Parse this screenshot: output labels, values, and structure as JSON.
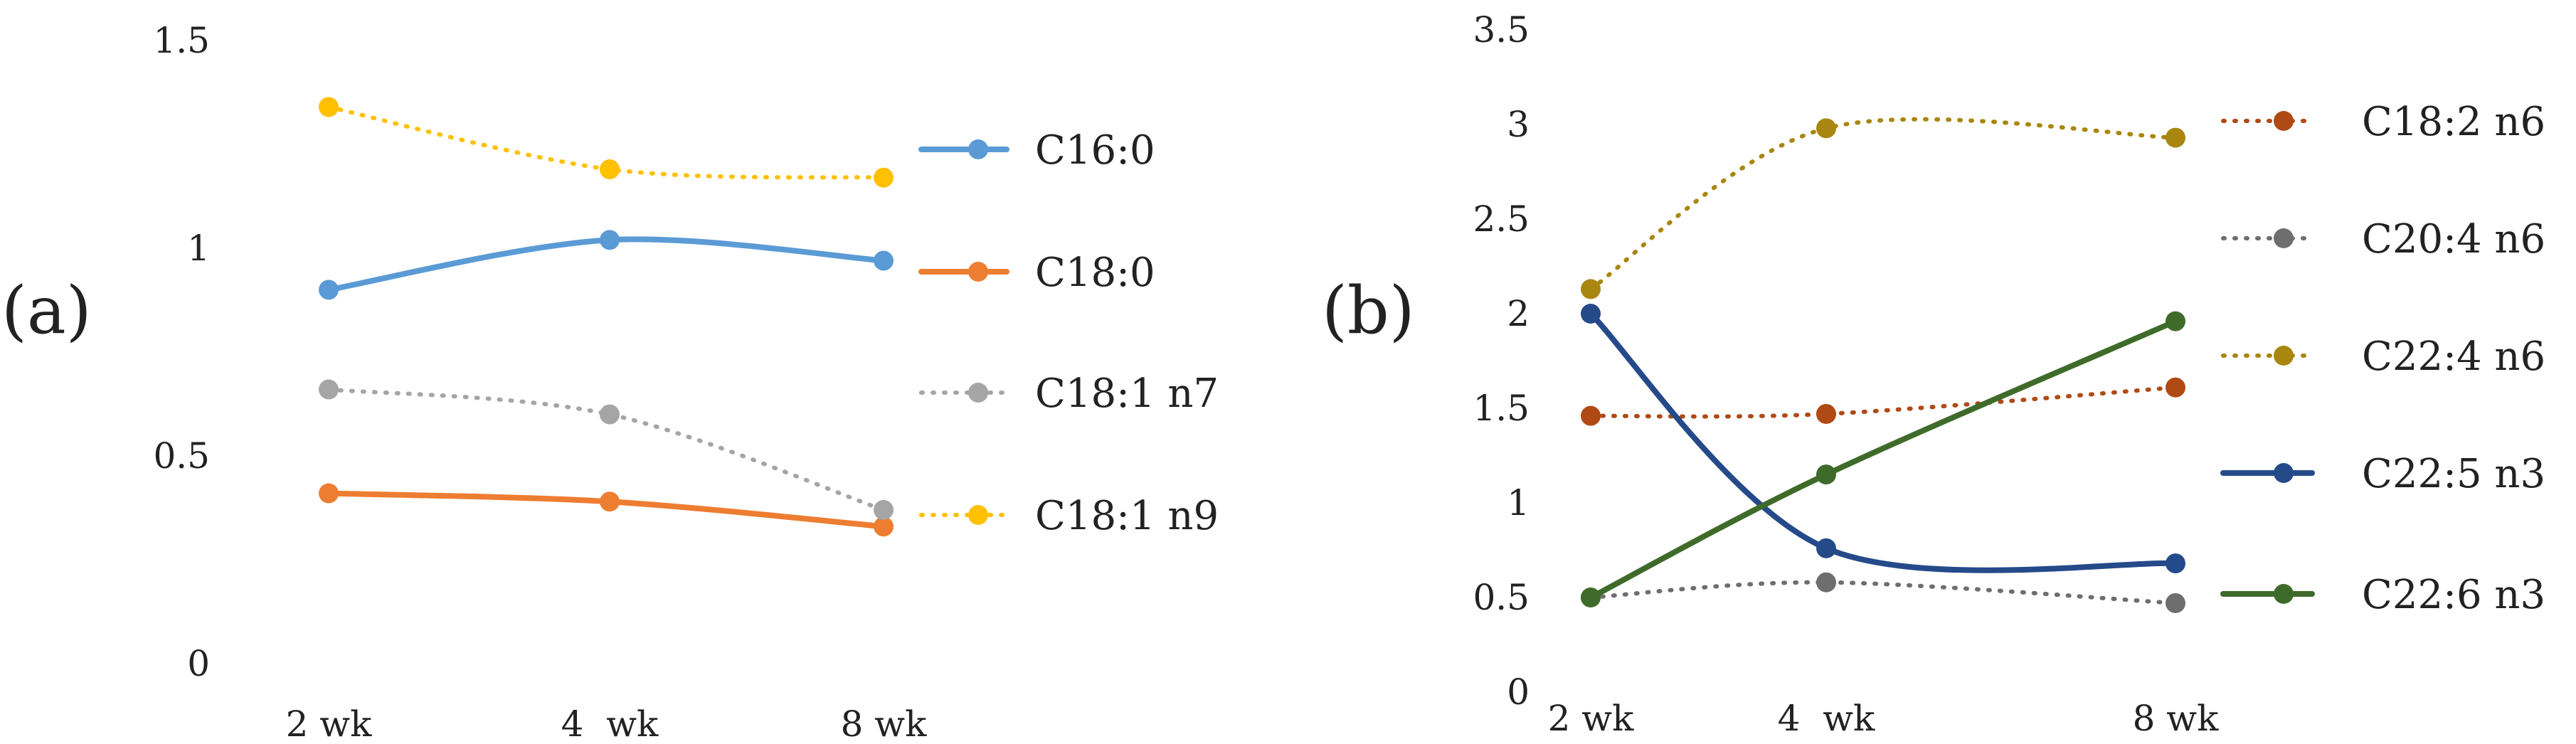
{
  "chart_data": [
    {
      "type": "line",
      "panel_label": "(a)",
      "categories": [
        "2 wk",
        "4  wk",
        "8 wk"
      ],
      "ylim": [
        0,
        1.5
      ],
      "yticks": [
        "0",
        "0.5",
        "1",
        "1.5"
      ],
      "grid": false,
      "legend_position": "right",
      "series": [
        {
          "name": "C16:0",
          "values": [
            0.9,
            1.02,
            0.97
          ],
          "color": "#5b9bd5",
          "style": "solid"
        },
        {
          "name": "C18:0",
          "values": [
            0.41,
            0.39,
            0.33
          ],
          "color": "#ed7d31",
          "style": "solid"
        },
        {
          "name": "C18:1 n7",
          "values": [
            0.66,
            0.6,
            0.37
          ],
          "color": "#a5a5a5",
          "style": "dotted"
        },
        {
          "name": "C18:1 n9",
          "values": [
            1.34,
            1.19,
            1.17
          ],
          "color": "#ffc000",
          "style": "dotted"
        }
      ]
    },
    {
      "type": "line",
      "panel_label": "(b)",
      "categories": [
        "2 wk",
        "4  wk",
        "8 wk"
      ],
      "ylim": [
        0,
        3.5
      ],
      "yticks": [
        "0",
        "0.5",
        "1",
        "1.5",
        "2",
        "2.5",
        "3",
        "3.5"
      ],
      "grid": false,
      "legend_position": "right",
      "series": [
        {
          "name": "C18:2 n6",
          "values": [
            1.46,
            1.47,
            1.61
          ],
          "color": "#b04a15",
          "style": "dotted"
        },
        {
          "name": "C20:4 n6",
          "values": [
            0.5,
            0.58,
            0.47
          ],
          "color": "#6e6e6e",
          "style": "dotted"
        },
        {
          "name": "C22:4 n6",
          "values": [
            2.13,
            2.98,
            2.93
          ],
          "color": "#a8860f",
          "style": "dotted"
        },
        {
          "name": "C22:5 n3",
          "values": [
            2.0,
            0.76,
            0.68
          ],
          "color": "#254a8a",
          "style": "solid"
        },
        {
          "name": "C22:6 n3",
          "values": [
            0.5,
            1.15,
            1.96
          ],
          "color": "#3f6b2a",
          "style": "solid"
        }
      ]
    }
  ]
}
